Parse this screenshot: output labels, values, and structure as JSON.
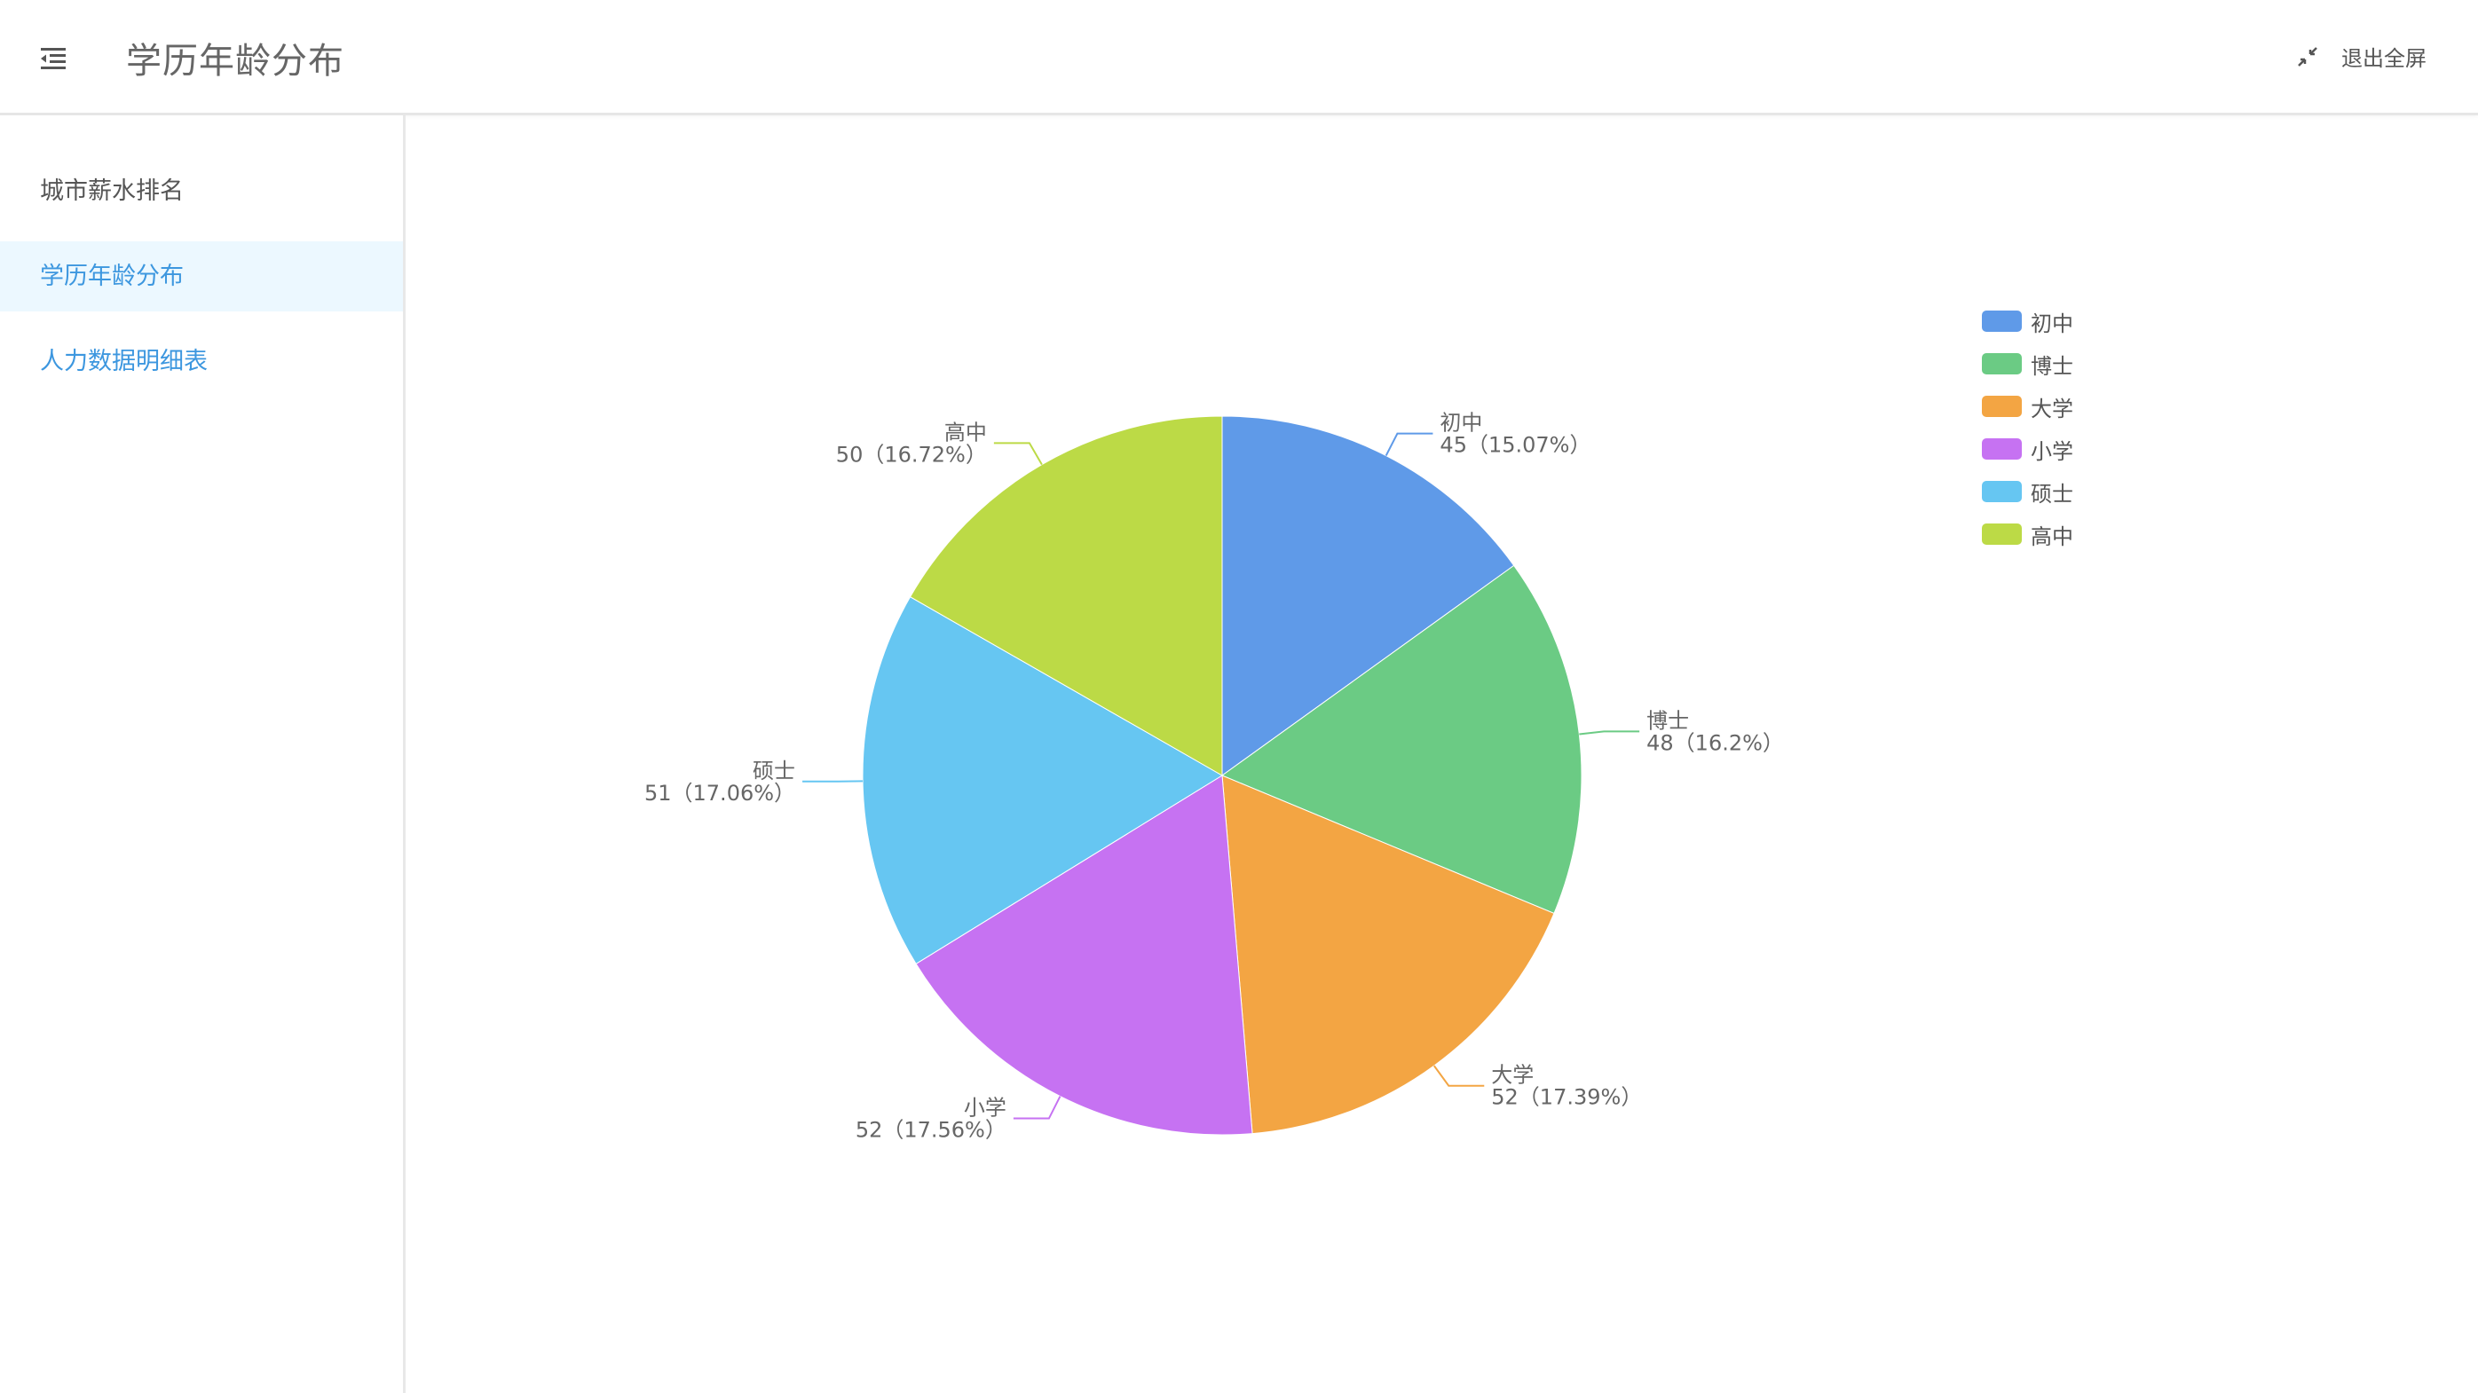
{
  "header": {
    "menu_icon": "indent-fold-icon",
    "title": "学历年龄分布",
    "exit_fullscreen_icon": "compress-arrows-icon",
    "exit_fullscreen_label": "退出全屏"
  },
  "sidebar": {
    "items": [
      {
        "label": "城市薪水排名",
        "state": "normal"
      },
      {
        "label": "学历年龄分布",
        "state": "active"
      },
      {
        "label": "人力数据明细表",
        "state": "link"
      }
    ]
  },
  "chart_data": {
    "type": "pie",
    "legend_position": "right",
    "start_angle": "top, clockwise",
    "slices": [
      {
        "name": "初中",
        "value": 45,
        "percent": 15.07,
        "label_value": "45（15.07%）",
        "color": "#5f9ae8"
      },
      {
        "name": "博士",
        "value": 48,
        "percent": 16.2,
        "label_value": "48（16.2%）",
        "color": "#6bcb84"
      },
      {
        "name": "大学",
        "value": 52,
        "percent": 17.39,
        "label_value": "52（17.39%）",
        "color": "#f3a543"
      },
      {
        "name": "小学",
        "value": 52,
        "percent": 17.56,
        "label_value": "52（17.56%）",
        "color": "#c672f2"
      },
      {
        "name": "硕士",
        "value": 51,
        "percent": 17.06,
        "label_value": "51（17.06%）",
        "color": "#66c6f2"
      },
      {
        "name": "高中",
        "value": 50,
        "percent": 16.72,
        "label_value": "50（16.72%）",
        "color": "#bcda46"
      }
    ]
  }
}
